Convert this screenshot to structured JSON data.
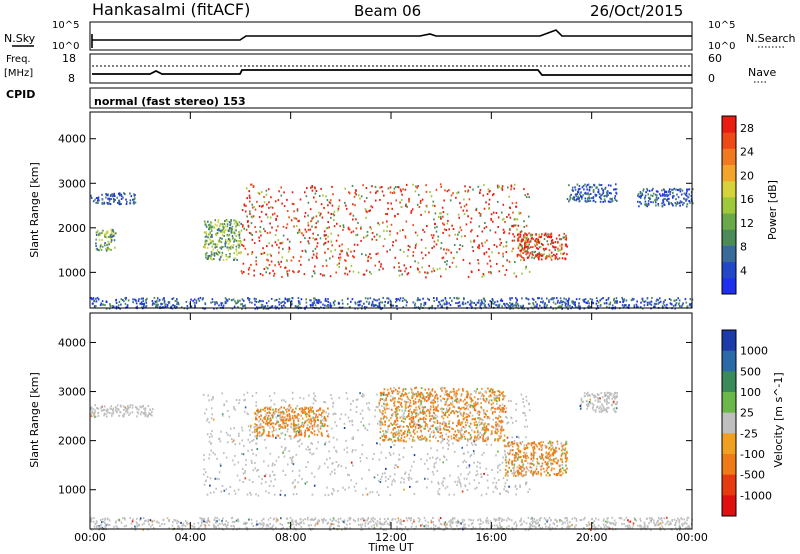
{
  "header": {
    "title": "Hankasalmi (fitACF)",
    "beam": "Beam 06",
    "date": "26/Oct/2015"
  },
  "strip_panels": {
    "nsky_label": "N.Sky",
    "nsearch_label": "N.Search",
    "count_ticks": [
      "10^5",
      "10^0"
    ],
    "freq_label": "Freq.",
    "freq_unit": "[MHz]",
    "freq_ticks": [
      "18",
      "8"
    ],
    "nave_label": "Nave",
    "nave_ticks": [
      "60",
      "0"
    ],
    "cpid_label": "CPID",
    "cpid_value": "normal (fast stereo) 153"
  },
  "colors": {
    "power": [
      "#1f2ff0",
      "#2248c8",
      "#3a6a9a",
      "#4d8a5a",
      "#6aa84a",
      "#9ec93a",
      "#d6d23a",
      "#f2a52a",
      "#f07a20",
      "#ee4a18",
      "#e81c10"
    ],
    "velocity": [
      "#1c3aa8",
      "#2a6aa8",
      "#3a8a5a",
      "#6ab84a",
      "#bfbfbf",
      "#f0a020",
      "#f07a18",
      "#e83a10",
      "#e01010"
    ]
  },
  "chart_data": [
    {
      "type": "heatmap",
      "name": "power",
      "xlabel": "Time UT",
      "ylabel": "Slant Range [km]",
      "x_ticks": [
        "00:00",
        "04:00",
        "08:00",
        "12:00",
        "16:00",
        "20:00",
        "00:00"
      ],
      "xlim_hours": [
        0,
        24
      ],
      "ylim_km": [
        200,
        4600
      ],
      "y_ticks": [
        1000,
        2000,
        3000,
        4000
      ],
      "colorbar": {
        "label": "Power [dB]",
        "ticks": [
          4,
          8,
          12,
          16,
          20,
          24,
          28
        ],
        "range": [
          0,
          30
        ]
      },
      "echo_regions": [
        {
          "t_start": 0.0,
          "t_end": 24.0,
          "r_min": 200,
          "r_max": 450,
          "level": "low"
        },
        {
          "t_start": 0.0,
          "t_end": 1.8,
          "r_min": 2550,
          "r_max": 2800,
          "level": "low"
        },
        {
          "t_start": 0.2,
          "t_end": 1.0,
          "r_min": 1500,
          "r_max": 2000,
          "level": "mid"
        },
        {
          "t_start": 4.5,
          "t_end": 6.0,
          "r_min": 1300,
          "r_max": 2200,
          "level": "mid"
        },
        {
          "t_start": 6.0,
          "t_end": 17.5,
          "r_min": 900,
          "r_max": 3000,
          "level": "high"
        },
        {
          "t_start": 17.0,
          "t_end": 19.0,
          "r_min": 1300,
          "r_max": 1900,
          "level": "high"
        },
        {
          "t_start": 19.0,
          "t_end": 21.0,
          "r_min": 2600,
          "r_max": 3000,
          "level": "low"
        },
        {
          "t_start": 21.8,
          "t_end": 24.0,
          "r_min": 2500,
          "r_max": 2900,
          "level": "low"
        }
      ]
    },
    {
      "type": "heatmap",
      "name": "velocity",
      "xlabel": "Time UT",
      "ylabel": "Slant Range [km]",
      "x_ticks": [
        "00:00",
        "04:00",
        "08:00",
        "12:00",
        "16:00",
        "20:00",
        "00:00"
      ],
      "xlim_hours": [
        0,
        24
      ],
      "ylim_km": [
        200,
        4600
      ],
      "y_ticks": [
        1000,
        2000,
        3000,
        4000
      ],
      "colorbar": {
        "label": "Velocity [m s^-1]",
        "ticks": [
          "1000",
          "500",
          "100",
          "25",
          "-25",
          "-100",
          "-500",
          "-1000"
        ]
      },
      "echo_regions": [
        {
          "t_start": 0.0,
          "t_end": 24.0,
          "r_min": 200,
          "r_max": 450,
          "level": "ground"
        },
        {
          "t_start": 0.0,
          "t_end": 2.5,
          "r_min": 2500,
          "r_max": 2750,
          "level": "ground"
        },
        {
          "t_start": 4.5,
          "t_end": 17.5,
          "r_min": 900,
          "r_max": 3000,
          "level": "ground"
        },
        {
          "t_start": 6.5,
          "t_end": 9.5,
          "r_min": 2100,
          "r_max": 2700,
          "level": "away"
        },
        {
          "t_start": 11.5,
          "t_end": 16.5,
          "r_min": 2000,
          "r_max": 3100,
          "level": "away"
        },
        {
          "t_start": 16.5,
          "t_end": 19.0,
          "r_min": 1300,
          "r_max": 2000,
          "level": "away"
        },
        {
          "t_start": 19.5,
          "t_end": 21.0,
          "r_min": 2600,
          "r_max": 3000,
          "level": "ground"
        }
      ]
    }
  ]
}
